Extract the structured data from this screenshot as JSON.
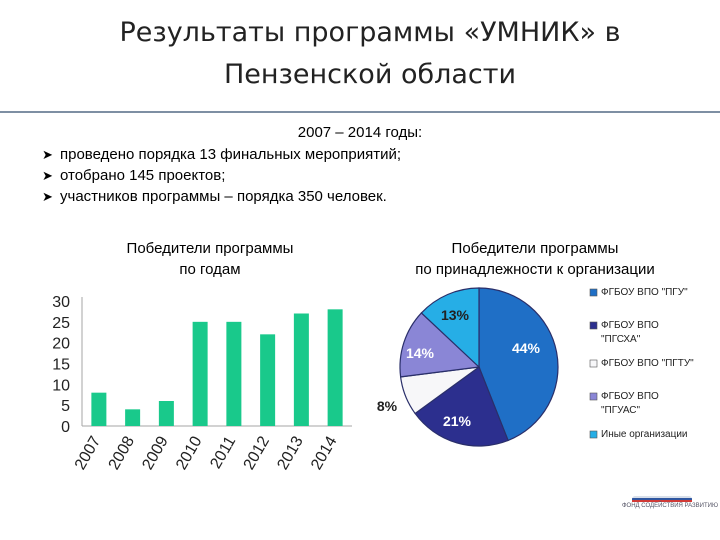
{
  "slide": {
    "title_line1": "Результаты программы «УМНИК» в",
    "title_line2": "Пензенской области",
    "years": "2007 – 2014  годы:",
    "bullets": [
      "проведено порядка 13 финальных мероприятий;",
      "отобрано 145 проектов;",
      "участников программы – порядка 350 человек."
    ],
    "logo_text": "ФОНД СОДЕЙСТВИЯ РАЗВИТИЮ"
  },
  "chart_data": [
    {
      "type": "bar",
      "title_line1": "Победители программы",
      "title_line2": "по годам",
      "categories": [
        "2007",
        "2008",
        "2009",
        "2010",
        "2011",
        "2012",
        "2013",
        "2014"
      ],
      "values": [
        8,
        4,
        6,
        25,
        25,
        22,
        27,
        28
      ],
      "ylim": [
        0,
        30
      ],
      "yticks": [
        "0",
        "5",
        "10",
        "15",
        "20",
        "25",
        "30"
      ],
      "grid": false,
      "colors": {
        "bar": "#19c98b"
      }
    },
    {
      "type": "pie",
      "title_line1": "Победители программы",
      "title_line2": "по принадлежности к организации",
      "legend_position": "right",
      "slices": [
        {
          "name": "ФГБОУ ВПО \"ПГУ\"",
          "value": 44,
          "label": "44%",
          "color": "#1f6fc6"
        },
        {
          "name": "ФГБОУ ВПО \"ПГСХА\"",
          "value": 21,
          "label": "21%",
          "color": "#2c2f8e"
        },
        {
          "name": "ФГБОУ ВПО \"ПГТУ\"",
          "value": 8,
          "label": "8%",
          "color": "#f7f7f9"
        },
        {
          "name": "ФГБОУ ВПО \"ПГУАС\"",
          "value": 14,
          "label": "14%",
          "color": "#8a86d6"
        },
        {
          "name": "Иные организации",
          "value": 13,
          "label": "13%",
          "color": "#26aee6"
        }
      ],
      "legend": [
        [
          "ФГБОУ ВПО \"ПГУ\""
        ],
        [
          "ФГБОУ ВПО",
          "\"ПГСХА\""
        ],
        [
          "ФГБОУ ВПО \"ПГТУ\""
        ],
        [
          "ФГБОУ ВПО",
          "\"ПГУАС\""
        ],
        [
          "Иные организации"
        ]
      ]
    }
  ]
}
